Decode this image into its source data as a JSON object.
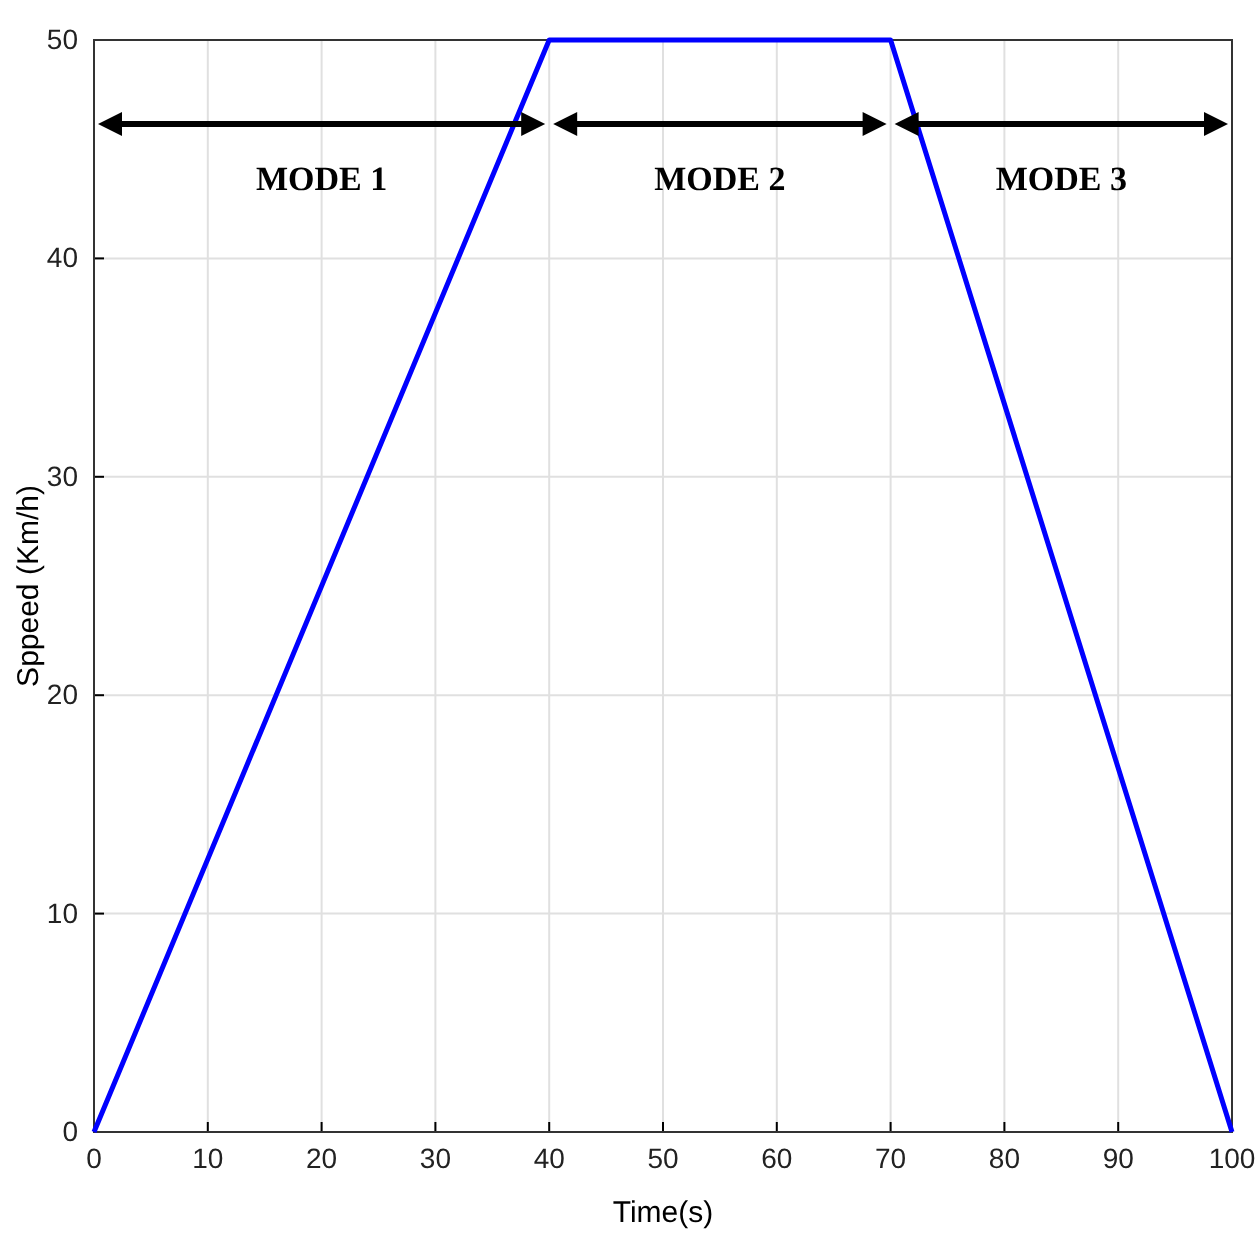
{
  "chart_data": {
    "type": "line",
    "xlabel": "Time(s)",
    "ylabel": "Sppeed (Km/h)",
    "x": [
      0,
      40,
      70,
      100
    ],
    "series": [
      {
        "color": "#0000ff",
        "values": [
          0,
          50,
          50,
          0
        ]
      }
    ],
    "xlim": [
      0,
      100
    ],
    "xticks": [
      0,
      10,
      20,
      30,
      40,
      50,
      60,
      70,
      80,
      90,
      100
    ],
    "ylim": [
      0,
      50
    ],
    "yticks": [
      0,
      10,
      20,
      30,
      40,
      50
    ],
    "grid": true,
    "line_style": "solid",
    "marker": "none",
    "annotations": [
      "MODE 1",
      "MODE 2",
      "MODE 3"
    ]
  }
}
